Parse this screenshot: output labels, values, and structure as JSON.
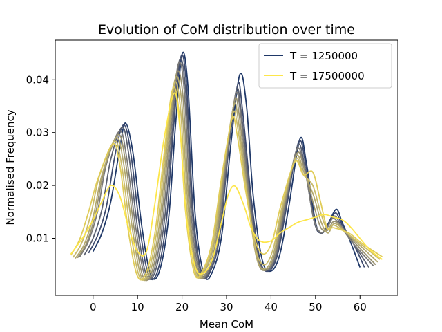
{
  "chart_data": {
    "type": "line",
    "title": "Evolution of CoM distribution over time",
    "xlabel": "Mean CoM",
    "ylabel": "Normalised Frequency",
    "xlim": [
      -8.5,
      68.5
    ],
    "ylim": [
      -0.0008,
      0.0475
    ],
    "xticks": [
      0,
      10,
      20,
      30,
      40,
      50,
      60
    ],
    "yticks": [
      0.01,
      0.02,
      0.03,
      0.04
    ],
    "xtick_labels": [
      "0",
      "10",
      "20",
      "30",
      "40",
      "50",
      "60"
    ],
    "ytick_labels": [
      "0.01",
      "0.02",
      "0.03",
      "0.04"
    ],
    "grid": false,
    "legend_position": "top-right",
    "legend": [
      {
        "label": "T = 1250000",
        "color": "#1f3868"
      },
      {
        "label": "T = 17500000",
        "color": "#fde64a"
      }
    ],
    "series": [
      {
        "color": "#1f3868",
        "x": [
          0,
          2,
          4,
          6,
          7.3,
          9,
          11,
          13,
          15,
          17,
          18.5,
          20,
          21.3,
          23,
          25,
          27,
          29,
          31,
          33,
          34.5,
          36,
          38,
          40,
          42,
          44,
          46.5,
          48,
          50,
          51.5,
          53,
          54.7,
          56,
          58,
          60
        ],
        "y": [
          0.0075,
          0.011,
          0.017,
          0.027,
          0.0318,
          0.026,
          0.012,
          0.003,
          0.004,
          0.014,
          0.031,
          0.0448,
          0.039,
          0.014,
          0.003,
          0.004,
          0.011,
          0.028,
          0.041,
          0.035,
          0.018,
          0.006,
          0.0038,
          0.007,
          0.016,
          0.0288,
          0.024,
          0.013,
          0.011,
          0.013,
          0.0155,
          0.013,
          0.009,
          0.0045
        ]
      },
      {
        "color": "#3d4a6e",
        "x": [
          -1,
          1,
          3,
          5,
          6.9,
          8.5,
          10.5,
          12.5,
          14.5,
          16.5,
          18,
          19.7,
          21,
          22.5,
          24.5,
          26.5,
          28.5,
          30.5,
          32.5,
          33.5,
          35.5,
          37.5,
          39.5,
          41.5,
          43.5,
          46.2,
          47.8,
          49.8,
          51.3,
          52.8,
          54.5,
          56,
          58.5,
          61
        ],
        "y": [
          0.0072,
          0.0105,
          0.016,
          0.026,
          0.0315,
          0.026,
          0.012,
          0.003,
          0.0038,
          0.0135,
          0.03,
          0.0442,
          0.039,
          0.015,
          0.0032,
          0.004,
          0.0105,
          0.027,
          0.039,
          0.035,
          0.018,
          0.006,
          0.0038,
          0.007,
          0.016,
          0.0282,
          0.024,
          0.013,
          0.011,
          0.0125,
          0.0148,
          0.0125,
          0.009,
          0.0045
        ]
      },
      {
        "color": "#5a6070",
        "x": [
          -2,
          0,
          2,
          4,
          6.5,
          8,
          10,
          12,
          14,
          16,
          17.7,
          19.4,
          20.8,
          22.3,
          24.3,
          26.3,
          28.3,
          30.3,
          32.2,
          33.3,
          35.3,
          37.3,
          39.3,
          41.3,
          43.3,
          46,
          47.6,
          49.6,
          51.1,
          52.6,
          54.3,
          56,
          58.5,
          62
        ],
        "y": [
          0.0068,
          0.01,
          0.0155,
          0.025,
          0.031,
          0.026,
          0.012,
          0.003,
          0.0038,
          0.013,
          0.029,
          0.0436,
          0.038,
          0.015,
          0.0032,
          0.004,
          0.01,
          0.026,
          0.038,
          0.034,
          0.018,
          0.006,
          0.004,
          0.007,
          0.016,
          0.0275,
          0.0235,
          0.0135,
          0.011,
          0.012,
          0.0142,
          0.012,
          0.009,
          0.0045
        ]
      },
      {
        "color": "#7b7a78",
        "x": [
          -3,
          -1,
          1,
          3,
          6,
          7.6,
          9.6,
          11.6,
          13.6,
          15.6,
          17.3,
          19.1,
          20.5,
          22,
          24,
          26,
          28,
          30,
          32,
          33.1,
          35.1,
          37.1,
          39.1,
          41.1,
          43.1,
          45.8,
          47.6,
          49.5,
          51,
          52.5,
          54,
          56,
          58.5,
          63
        ],
        "y": [
          0.0065,
          0.0095,
          0.015,
          0.024,
          0.0303,
          0.025,
          0.012,
          0.003,
          0.0037,
          0.0128,
          0.028,
          0.0428,
          0.038,
          0.015,
          0.0032,
          0.004,
          0.01,
          0.025,
          0.037,
          0.034,
          0.018,
          0.006,
          0.004,
          0.007,
          0.016,
          0.0268,
          0.023,
          0.014,
          0.0112,
          0.0118,
          0.0138,
          0.0118,
          0.009,
          0.0048
        ]
      },
      {
        "color": "#9a9371",
        "x": [
          -3.5,
          -1.5,
          0.5,
          2.5,
          5.6,
          7.2,
          9.2,
          11.2,
          13.2,
          15.2,
          16.9,
          18.7,
          20.2,
          21.7,
          23.7,
          25.7,
          27.7,
          29.7,
          31.8,
          32.9,
          34.9,
          36.9,
          38.9,
          40.9,
          42.9,
          45.8,
          47.5,
          49.7,
          51.2,
          52.7,
          54.2,
          56.5,
          59,
          63.5
        ],
        "y": [
          0.0063,
          0.009,
          0.0145,
          0.023,
          0.0296,
          0.025,
          0.012,
          0.0028,
          0.0036,
          0.0124,
          0.027,
          0.041,
          0.037,
          0.015,
          0.0032,
          0.004,
          0.0098,
          0.024,
          0.036,
          0.033,
          0.018,
          0.006,
          0.004,
          0.0072,
          0.016,
          0.026,
          0.023,
          0.016,
          0.012,
          0.0115,
          0.0132,
          0.0115,
          0.009,
          0.005
        ]
      },
      {
        "color": "#b2a86e",
        "x": [
          -4,
          -2,
          0,
          2,
          5.2,
          6.8,
          8.8,
          10.8,
          12.8,
          14.8,
          16.5,
          18.4,
          19.9,
          21.4,
          23.4,
          25.4,
          27.4,
          29.4,
          31.6,
          32.7,
          34.7,
          36.7,
          38.7,
          40.7,
          42.7,
          45.6,
          47.4,
          49.6,
          51.3,
          52.8,
          54.3,
          57,
          59.5,
          64
        ],
        "y": [
          0.0062,
          0.0088,
          0.014,
          0.022,
          0.029,
          0.0245,
          0.012,
          0.0028,
          0.0036,
          0.012,
          0.026,
          0.04,
          0.036,
          0.0155,
          0.0033,
          0.0042,
          0.0098,
          0.023,
          0.035,
          0.032,
          0.018,
          0.0065,
          0.0042,
          0.0075,
          0.016,
          0.0255,
          0.0225,
          0.018,
          0.013,
          0.011,
          0.0128,
          0.011,
          0.009,
          0.0055
        ]
      },
      {
        "color": "#c9bb6a",
        "x": [
          -4.5,
          -2.5,
          -0.5,
          1.5,
          4.8,
          6.4,
          8.4,
          10.4,
          12.4,
          14.4,
          16.1,
          18.1,
          19.6,
          21.1,
          23.1,
          25.1,
          27.1,
          29.1,
          31.4,
          32.5,
          34.5,
          36.5,
          38.5,
          40.5,
          42.5,
          45.5,
          47.3,
          49.4,
          51.1,
          52.6,
          54.1,
          57,
          60,
          64.5
        ],
        "y": [
          0.0064,
          0.0092,
          0.0145,
          0.022,
          0.0283,
          0.024,
          0.0115,
          0.0028,
          0.0036,
          0.0118,
          0.025,
          0.039,
          0.035,
          0.0155,
          0.0033,
          0.0042,
          0.0096,
          0.022,
          0.0335,
          0.031,
          0.019,
          0.008,
          0.005,
          0.008,
          0.016,
          0.025,
          0.022,
          0.02,
          0.015,
          0.0118,
          0.0125,
          0.011,
          0.009,
          0.006
        ]
      },
      {
        "color": "#e0cc58",
        "x": [
          -5,
          -3,
          -1,
          1,
          4.4,
          6,
          8,
          10,
          12,
          14,
          15.7,
          17.8,
          19.3,
          20.8,
          22.8,
          24.8,
          26.8,
          28.8,
          31.2,
          32.3,
          34.3,
          36.3,
          38.3,
          40.3,
          42.3,
          45.4,
          47.3,
          49.4,
          51.1,
          52.6,
          54.1,
          57.5,
          60.5,
          65
        ],
        "y": [
          0.0068,
          0.0098,
          0.015,
          0.021,
          0.0278,
          0.024,
          0.011,
          0.0028,
          0.0036,
          0.0115,
          0.024,
          0.038,
          0.034,
          0.015,
          0.0033,
          0.0042,
          0.0095,
          0.021,
          0.0325,
          0.03,
          0.019,
          0.01,
          0.007,
          0.0095,
          0.0165,
          0.0245,
          0.022,
          0.0225,
          0.017,
          0.012,
          0.012,
          0.011,
          0.009,
          0.0065
        ]
      },
      {
        "color": "#fde64a",
        "x": [
          -5,
          -2,
          0,
          2,
          4,
          6,
          8,
          10,
          12,
          13.8,
          16,
          18.3,
          19.6,
          21,
          23,
          25,
          27,
          29,
          30.5,
          32,
          34,
          35.5,
          37.5,
          40,
          42,
          44,
          46,
          48,
          50,
          52,
          54,
          56,
          58,
          62,
          65
        ],
        "y": [
          0.007,
          0.0105,
          0.0135,
          0.017,
          0.02,
          0.018,
          0.012,
          0.0075,
          0.0075,
          0.016,
          0.029,
          0.0375,
          0.03,
          0.014,
          0.0045,
          0.0035,
          0.0065,
          0.0135,
          0.0185,
          0.0198,
          0.016,
          0.012,
          0.0095,
          0.0095,
          0.011,
          0.012,
          0.013,
          0.0135,
          0.014,
          0.0145,
          0.014,
          0.0135,
          0.012,
          0.008,
          0.006
        ]
      }
    ]
  }
}
